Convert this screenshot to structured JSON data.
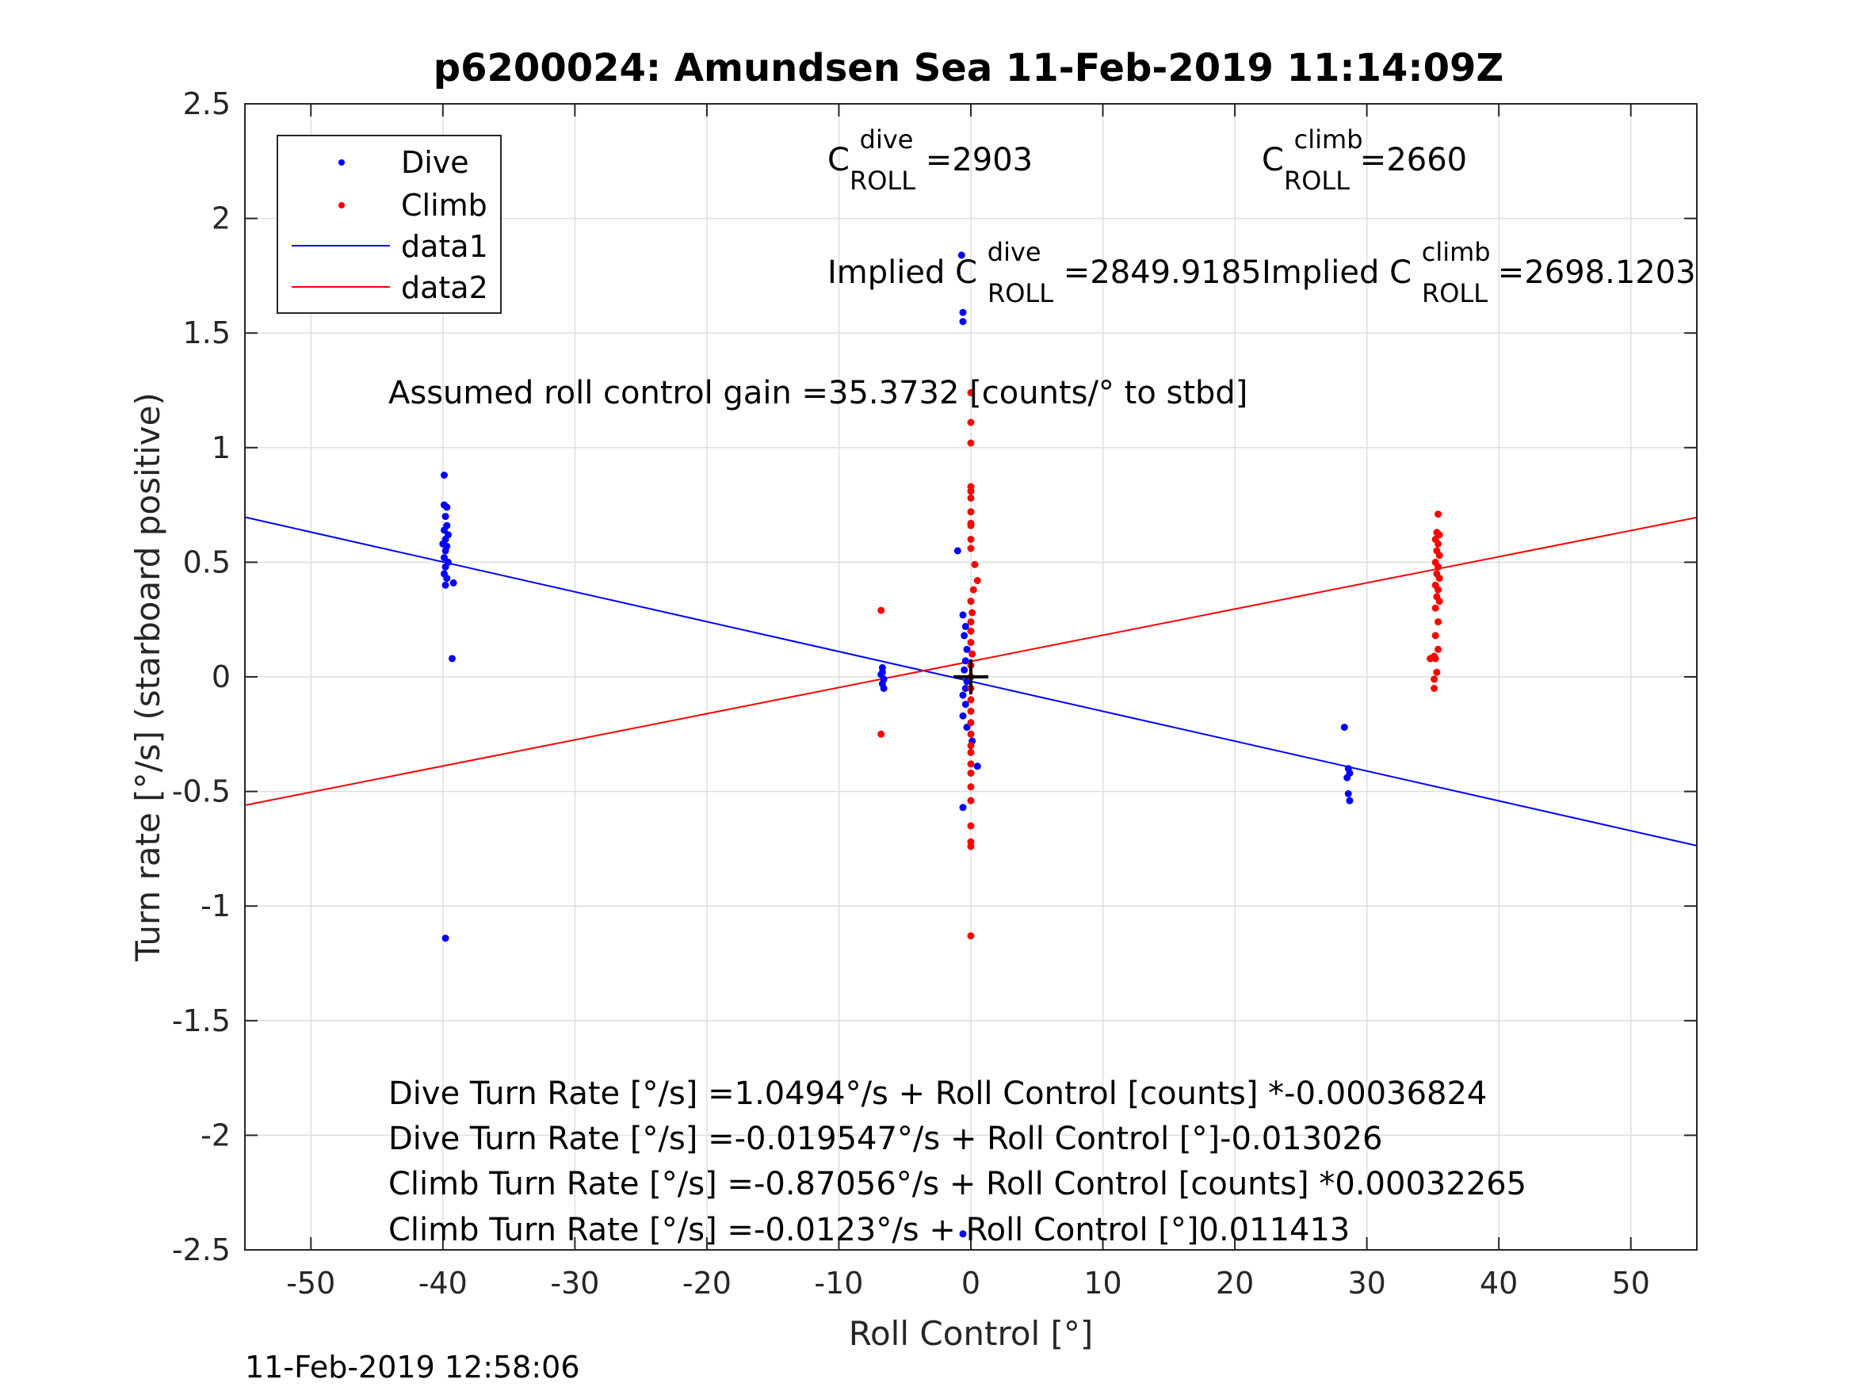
{
  "chart_data": {
    "type": "scatter",
    "title": "p6200024: Amundsen Sea 11-Feb-2019 11:14:09Z",
    "xlabel": "Roll Control [°]",
    "ylabel": "Turn rate [°/s] (starboard positive)",
    "xlim": [
      -55,
      55
    ],
    "ylim": [
      -2.5,
      2.5
    ],
    "x_ticks": [
      -50,
      -40,
      -30,
      -20,
      -10,
      0,
      10,
      20,
      30,
      40,
      50
    ],
    "y_ticks": [
      2.5,
      2,
      1.5,
      1,
      0.5,
      0,
      -0.5,
      -1,
      -1.5,
      -2,
      -2.5
    ],
    "grid": true,
    "legend_position": "top-left",
    "legend": [
      "Dive",
      "Climb",
      "data1",
      "data2"
    ],
    "colors": {
      "dive": "#0000ff",
      "climb": "#ff0000",
      "axes": "#262626",
      "grid": "#dedede"
    },
    "series": [
      {
        "name": "Dive",
        "marker": "dot",
        "color": "#0000ff",
        "points": [
          [
            -39.9,
            0.88
          ],
          [
            -39.9,
            0.75
          ],
          [
            -39.7,
            0.74
          ],
          [
            -39.8,
            0.7
          ],
          [
            -39.7,
            0.66
          ],
          [
            -39.9,
            0.64
          ],
          [
            -39.6,
            0.62
          ],
          [
            -39.8,
            0.6
          ],
          [
            -40.0,
            0.58
          ],
          [
            -39.7,
            0.57
          ],
          [
            -39.8,
            0.55
          ],
          [
            -39.9,
            0.52
          ],
          [
            -39.6,
            0.5
          ],
          [
            -39.8,
            0.48
          ],
          [
            -39.9,
            0.45
          ],
          [
            -39.7,
            0.43
          ],
          [
            -39.8,
            0.4
          ],
          [
            -39.2,
            0.41
          ],
          [
            -39.3,
            0.08
          ],
          [
            -39.8,
            -1.14
          ],
          [
            -6.7,
            0.04
          ],
          [
            -6.7,
            0.02
          ],
          [
            -6.8,
            0.01
          ],
          [
            -6.6,
            -0.01
          ],
          [
            -6.7,
            -0.03
          ],
          [
            -6.6,
            -0.05
          ],
          [
            -0.7,
            1.84
          ],
          [
            -0.6,
            1.59
          ],
          [
            -0.6,
            1.55
          ],
          [
            -1.0,
            0.55
          ],
          [
            -0.6,
            0.27
          ],
          [
            -0.4,
            0.22
          ],
          [
            -0.5,
            0.18
          ],
          [
            -0.3,
            0.12
          ],
          [
            -0.4,
            0.07
          ],
          [
            -0.5,
            0.03
          ],
          [
            -0.3,
            -0.02
          ],
          [
            -0.4,
            -0.05
          ],
          [
            -0.6,
            -0.08
          ],
          [
            -0.4,
            -0.12
          ],
          [
            -0.6,
            -0.17
          ],
          [
            -0.3,
            -0.22
          ],
          [
            0.1,
            -0.28
          ],
          [
            0.5,
            -0.39
          ],
          [
            -0.6,
            -0.57
          ],
          [
            -0.6,
            -2.43
          ],
          [
            28.3,
            -0.22
          ],
          [
            28.6,
            -0.4
          ],
          [
            28.7,
            -0.42
          ],
          [
            28.5,
            -0.44
          ],
          [
            28.6,
            -0.51
          ],
          [
            28.7,
            -0.54
          ]
        ]
      },
      {
        "name": "Climb",
        "marker": "dot",
        "color": "#ff0000",
        "points": [
          [
            -6.8,
            0.29
          ],
          [
            -6.8,
            -0.25
          ],
          [
            0.0,
            1.24
          ],
          [
            0.0,
            1.11
          ],
          [
            0.0,
            1.02
          ],
          [
            0.0,
            0.83
          ],
          [
            0.0,
            0.81
          ],
          [
            0.0,
            0.78
          ],
          [
            0.0,
            0.72
          ],
          [
            0.0,
            0.67
          ],
          [
            0.0,
            0.66
          ],
          [
            0.0,
            0.6
          ],
          [
            0.0,
            0.56
          ],
          [
            0.3,
            0.49
          ],
          [
            0.5,
            0.42
          ],
          [
            0.2,
            0.38
          ],
          [
            0.0,
            0.33
          ],
          [
            0.1,
            0.28
          ],
          [
            0.0,
            0.24
          ],
          [
            0.0,
            0.2
          ],
          [
            0.0,
            0.15
          ],
          [
            0.1,
            0.1
          ],
          [
            0.0,
            0.05
          ],
          [
            0.0,
            0.0
          ],
          [
            0.0,
            -0.05
          ],
          [
            0.0,
            -0.1
          ],
          [
            0.0,
            -0.15
          ],
          [
            0.0,
            -0.2
          ],
          [
            0.0,
            -0.25
          ],
          [
            0.0,
            -0.3
          ],
          [
            0.0,
            -0.33
          ],
          [
            0.0,
            -0.38
          ],
          [
            0.0,
            -0.42
          ],
          [
            0.0,
            -0.48
          ],
          [
            0.0,
            -0.54
          ],
          [
            0.0,
            -0.65
          ],
          [
            0.0,
            -0.72
          ],
          [
            0.0,
            -0.74
          ],
          [
            0.0,
            -1.13
          ],
          [
            35.4,
            0.71
          ],
          [
            35.3,
            0.63
          ],
          [
            35.5,
            0.62
          ],
          [
            35.2,
            0.6
          ],
          [
            35.4,
            0.58
          ],
          [
            35.3,
            0.55
          ],
          [
            35.5,
            0.53
          ],
          [
            35.2,
            0.5
          ],
          [
            35.4,
            0.48
          ],
          [
            35.3,
            0.45
          ],
          [
            35.5,
            0.43
          ],
          [
            35.2,
            0.4
          ],
          [
            35.4,
            0.38
          ],
          [
            35.3,
            0.35
          ],
          [
            35.5,
            0.33
          ],
          [
            35.2,
            0.3
          ],
          [
            35.4,
            0.24
          ],
          [
            35.2,
            0.18
          ],
          [
            35.4,
            0.12
          ],
          [
            35.1,
            0.09
          ],
          [
            34.8,
            0.08
          ],
          [
            35.2,
            0.08
          ],
          [
            35.3,
            0.02
          ],
          [
            35.1,
            -0.01
          ],
          [
            35.1,
            -0.05
          ]
        ]
      },
      {
        "name": "data1",
        "marker": "line",
        "color": "#0000ff",
        "points": [
          [
            -55,
            0.6967
          ],
          [
            55,
            -0.7364
          ]
        ]
      },
      {
        "name": "data2",
        "marker": "line",
        "color": "#ff0000",
        "points": [
          [
            -55,
            -0.5601
          ],
          [
            55,
            0.6953
          ]
        ]
      }
    ],
    "origin_marker": {
      "x": 0,
      "y": 0,
      "label": "+"
    },
    "annotations": {
      "c_dive": {
        "base": "C",
        "sup": "dive",
        "sub": "ROLL",
        "value": " =2903"
      },
      "c_climb": {
        "base": "C",
        "sup": "climb",
        "sub": "ROLL",
        "value": " =2660"
      },
      "implied_dive": {
        "prefix": "Implied C",
        "sup": "dive",
        "sub": "ROLL",
        "value": " =2849.9185"
      },
      "implied_climb": {
        "prefix": "Implied C",
        "sup": "climb",
        "sub": "ROLL",
        "value": " =2698.1203"
      },
      "gain": "Assumed roll control gain =35.3732 [counts/° to stbd]",
      "eq_dive_counts": "Dive Turn Rate [°/s] =1.0494°/s + Roll Control [counts] *-0.00036824",
      "eq_dive_deg": "Dive Turn Rate [°/s] =-0.019547°/s + Roll Control [°]-0.013026",
      "eq_climb_counts": "Climb Turn Rate [°/s] =-0.87056°/s + Roll Control [counts] *0.00032265",
      "eq_climb_deg": "Climb Turn Rate [°/s] =-0.0123°/s + Roll Control [°]0.011413"
    },
    "footer_timestamp": "11-Feb-2019 12:58:06"
  }
}
